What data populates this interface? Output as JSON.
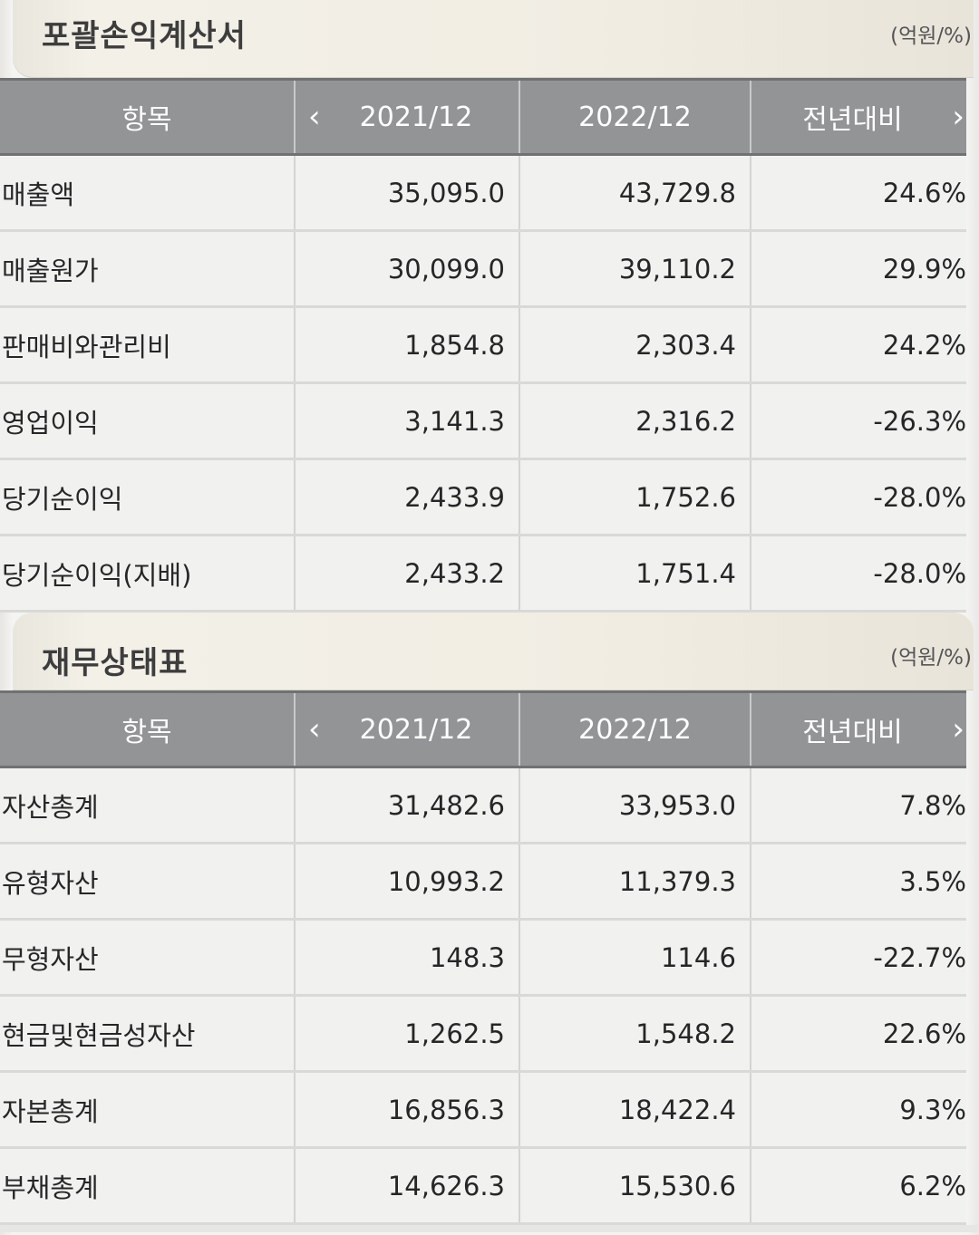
{
  "income_statement": {
    "title": "포괄손익계산서",
    "unit": "(억원/%)",
    "columns": {
      "item": "항목",
      "year1": "2021/12",
      "year2": "2022/12",
      "yoy": "전년대비"
    },
    "rows": [
      {
        "label": "매출액",
        "y1": "35,095.0",
        "y2": "43,729.8",
        "yoy": "24.6%",
        "negative": false
      },
      {
        "label": "매출원가",
        "y1": "30,099.0",
        "y2": "39,110.2",
        "yoy": "29.9%",
        "negative": false
      },
      {
        "label": "판매비와관리비",
        "y1": "1,854.8",
        "y2": "2,303.4",
        "yoy": "24.2%",
        "negative": false
      },
      {
        "label": "영업이익",
        "y1": "3,141.3",
        "y2": "2,316.2",
        "yoy": "-26.3%",
        "negative": true
      },
      {
        "label": "당기순이익",
        "y1": "2,433.9",
        "y2": "1,752.6",
        "yoy": "-28.0%",
        "negative": true
      },
      {
        "label": "당기순이익(지배)",
        "y1": "2,433.2",
        "y2": "1,751.4",
        "yoy": "-28.0%",
        "negative": true
      }
    ]
  },
  "balance_sheet": {
    "title": "재무상태표",
    "unit": "(억원/%)",
    "columns": {
      "item": "항목",
      "year1": "2021/12",
      "year2": "2022/12",
      "yoy": "전년대비"
    },
    "rows": [
      {
        "label": "자산총계",
        "y1": "31,482.6",
        "y2": "33,953.0",
        "yoy": "7.8%",
        "negative": false
      },
      {
        "label": "유형자산",
        "y1": "10,993.2",
        "y2": "11,379.3",
        "yoy": "3.5%",
        "negative": false
      },
      {
        "label": "무형자산",
        "y1": "148.3",
        "y2": "114.6",
        "yoy": "-22.7%",
        "negative": true
      },
      {
        "label": "현금및현금성자산",
        "y1": "1,262.5",
        "y2": "1,548.2",
        "yoy": "22.6%",
        "negative": false
      },
      {
        "label": "자본총계",
        "y1": "16,856.3",
        "y2": "18,422.4",
        "yoy": "9.3%",
        "negative": false
      },
      {
        "label": "부채총계",
        "y1": "14,626.3",
        "y2": "15,530.6",
        "yoy": "6.2%",
        "negative": false
      }
    ]
  },
  "icons": {
    "prev": "chevron-left-icon",
    "next": "chevron-right-icon"
  },
  "colors": {
    "negative": "#d03a2f",
    "header_bg": "#929496"
  }
}
